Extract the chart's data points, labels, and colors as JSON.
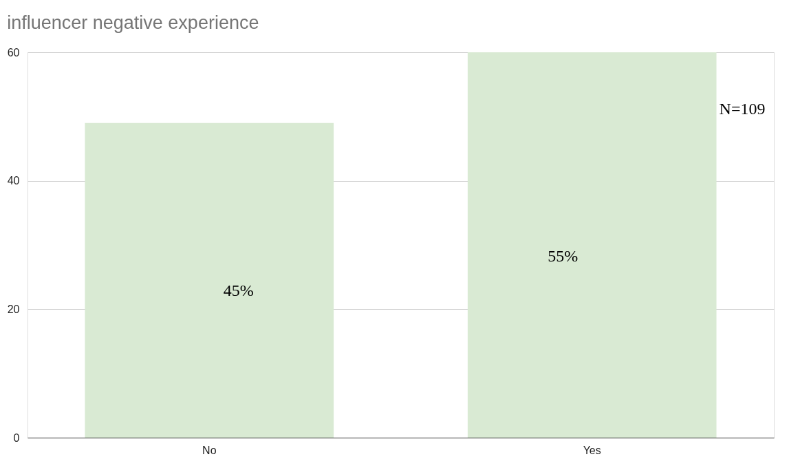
{
  "chart_data": {
    "type": "bar",
    "title": "influencer negative experience",
    "categories": [
      "No",
      "Yes"
    ],
    "values": [
      49,
      60
    ],
    "color": "#d9ead3",
    "ylim": [
      0,
      60
    ],
    "yticks": [
      0,
      20,
      40,
      60
    ],
    "grid": "y",
    "annotations": [
      "45%",
      "55%",
      "N=109"
    ]
  }
}
